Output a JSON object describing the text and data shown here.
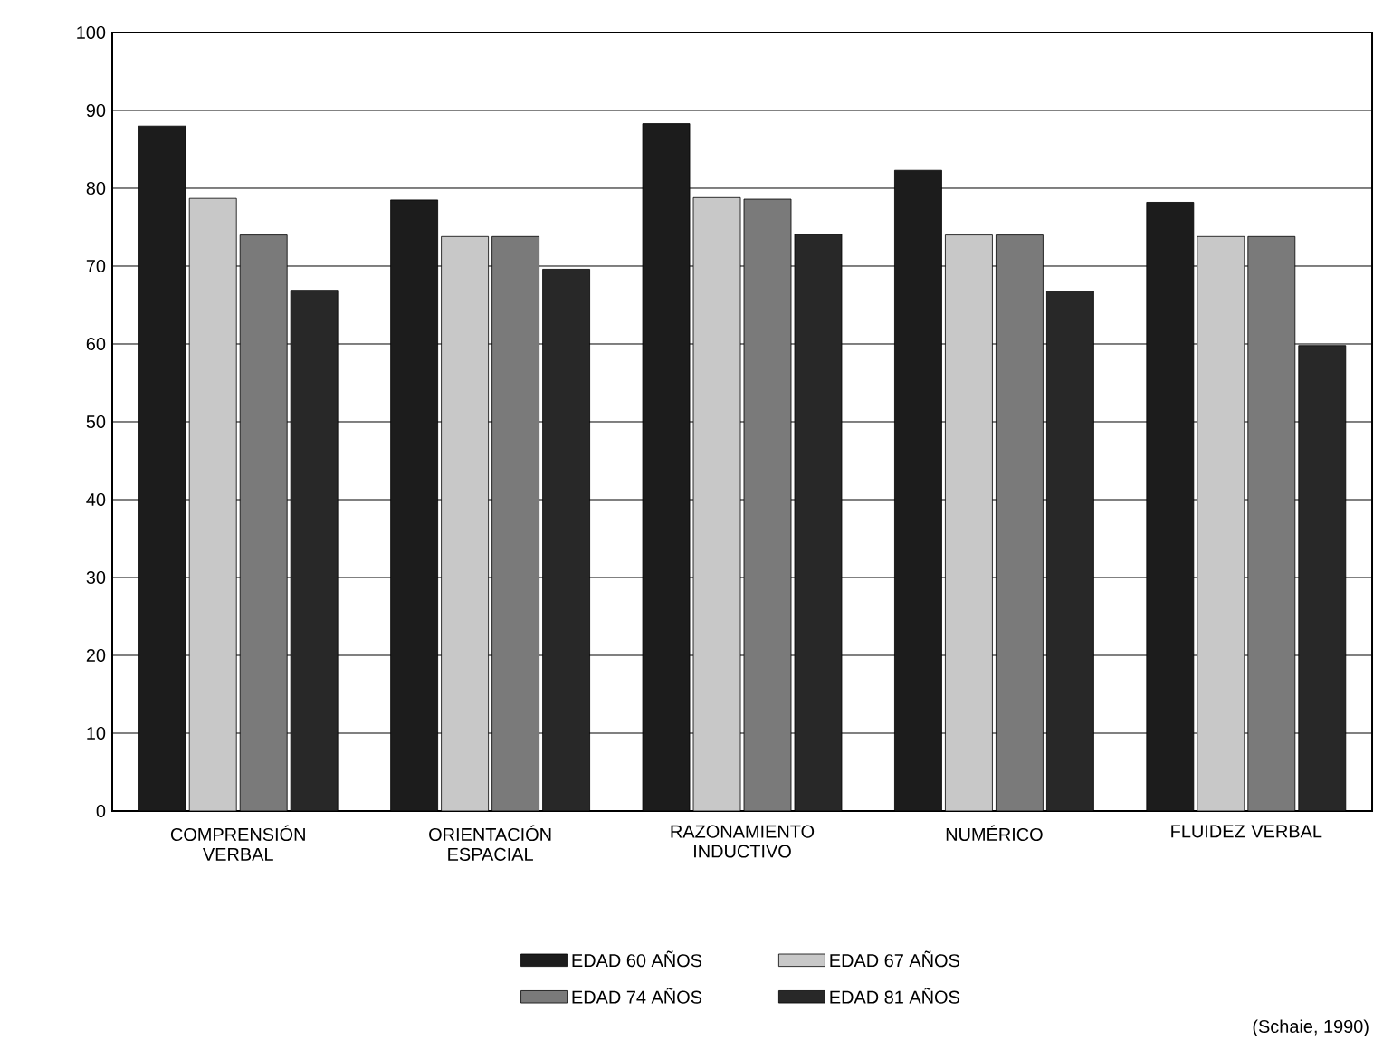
{
  "chart_data": {
    "type": "bar",
    "categories": [
      "COMPRENSIÓN VERBAL",
      "ORIENTACIÓN ESPACIAL",
      "RAZONAMIENTO INDUCTIVO",
      "NUMÉRICO",
      "FLUIDEZ VERBAL"
    ],
    "series": [
      {
        "name": "EDAD 60 AÑOS",
        "color": "#1c1c1c",
        "values": [
          88,
          78.5,
          88.3,
          82.3,
          78.2
        ]
      },
      {
        "name": "EDAD 67 AÑOS",
        "color": "#c8c8c8",
        "values": [
          78.7,
          73.8,
          78.8,
          74,
          73.8
        ]
      },
      {
        "name": "EDAD 74 AÑOS",
        "color": "#7a7a7a",
        "values": [
          74,
          73.8,
          78.6,
          74,
          73.8
        ]
      },
      {
        "name": "EDAD 81 AÑOS",
        "color": "#282828",
        "values": [
          66.9,
          69.6,
          74.1,
          66.8,
          59.8
        ]
      }
    ],
    "ylim": [
      0,
      100
    ],
    "yticks": [
      0,
      10,
      20,
      30,
      40,
      50,
      60,
      70,
      80,
      90,
      100
    ],
    "grid": "y",
    "legend": "bottom",
    "annotations": [
      "(Schaie, 1990)"
    ]
  }
}
